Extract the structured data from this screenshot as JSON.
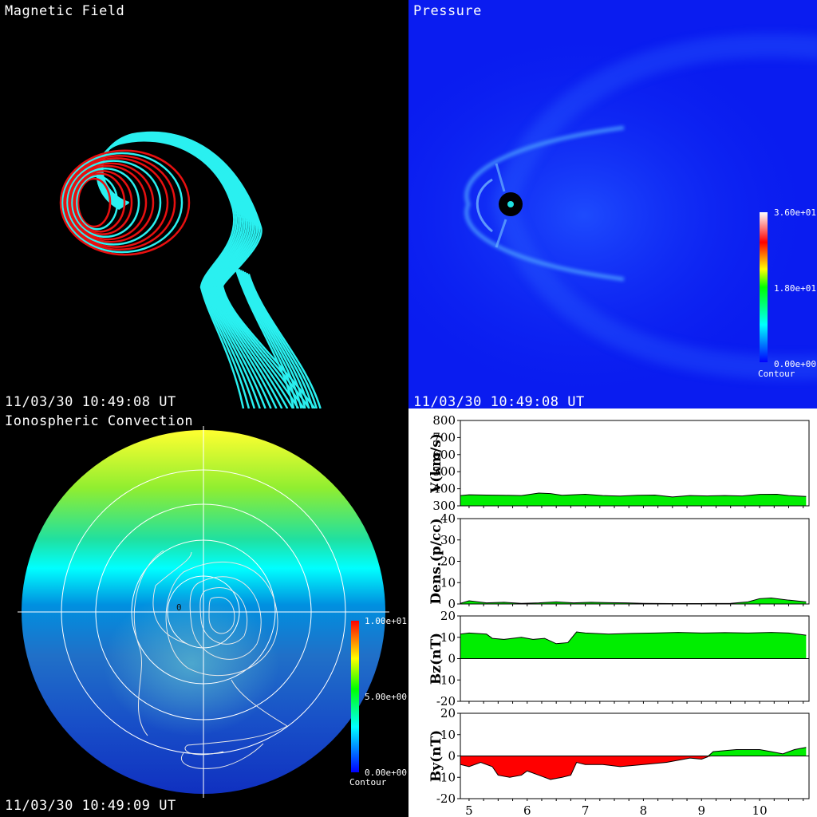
{
  "panels": {
    "magnetic_field": {
      "title": "Magnetic Field",
      "timestamp": "11/03/30 10:49:08 UT",
      "colors": {
        "closed_lines": "#e81010",
        "open_lines": "#2af0f0"
      }
    },
    "pressure": {
      "title": "Pressure",
      "timestamp": "11/03/30 10:49:08 UT",
      "colorbar": {
        "max": "3.60e+01",
        "mid": "1.80e+01",
        "min": "0.00e+00",
        "label": "Contour"
      },
      "colors": {
        "background": "#0a1cf0",
        "bowshock": "#3a8aff"
      }
    },
    "ionospheric_convection": {
      "title": "Ionospheric Convection",
      "timestamp": "11/03/30 10:49:09 UT",
      "colorbar": {
        "max": "1.00e+01",
        "mid": "5.00e+00",
        "min": "0.00e+00",
        "label": "Contour"
      },
      "center_label": "0"
    }
  },
  "solar_wind": {
    "x_ticks": [
      "5",
      "6",
      "7",
      "8",
      "9",
      "10"
    ],
    "plots": [
      {
        "ylabel": "V(km/s)",
        "ticks": [
          "800",
          "700",
          "600",
          "500",
          "400",
          "300"
        ]
      },
      {
        "ylabel": "Dens.(p/cc)",
        "ticks": [
          "40",
          "30",
          "20",
          "10",
          "0"
        ]
      },
      {
        "ylabel": "Bz(nT)",
        "ticks": [
          "20",
          "10",
          "0",
          "-10",
          "-20"
        ]
      },
      {
        "ylabel": "By(nT)",
        "ticks": [
          "20",
          "10",
          "0",
          "-10",
          "-20"
        ]
      }
    ],
    "colors": {
      "positive": "#00ee00",
      "negative": "#ff0000"
    }
  },
  "chart_data": [
    {
      "type": "area",
      "ylabel": "V(km/s)",
      "ylim": [
        300,
        800
      ],
      "x": [
        4.85,
        5.0,
        5.3,
        5.6,
        5.9,
        6.0,
        6.2,
        6.4,
        6.6,
        6.8,
        7.0,
        7.3,
        7.6,
        7.9,
        8.2,
        8.5,
        8.8,
        9.1,
        9.4,
        9.7,
        10.0,
        10.3,
        10.5,
        10.8
      ],
      "values": [
        360,
        365,
        363,
        362,
        360,
        365,
        375,
        372,
        362,
        365,
        368,
        360,
        357,
        362,
        363,
        352,
        360,
        358,
        360,
        358,
        367,
        368,
        360,
        355
      ]
    },
    {
      "type": "area",
      "ylabel": "Dens.(p/cc)",
      "ylim": [
        0,
        40
      ],
      "x": [
        4.85,
        5.0,
        5.3,
        5.6,
        5.9,
        6.2,
        6.5,
        6.8,
        7.1,
        7.4,
        7.7,
        8.0,
        8.5,
        9.0,
        9.5,
        9.8,
        10.0,
        10.2,
        10.5,
        10.8
      ],
      "values": [
        0.3,
        1.5,
        0.5,
        0.8,
        0.3,
        0.5,
        1.0,
        0.5,
        0.8,
        0.6,
        0.5,
        0.3,
        0.2,
        0.2,
        0.3,
        1.0,
        2.5,
        2.8,
        1.8,
        1.0
      ]
    },
    {
      "type": "area",
      "ylabel": "Bz(nT)",
      "ylim": [
        -20,
        20
      ],
      "x": [
        4.85,
        5.0,
        5.3,
        5.4,
        5.6,
        5.9,
        6.1,
        6.3,
        6.5,
        6.7,
        6.85,
        7.0,
        7.4,
        7.8,
        8.2,
        8.6,
        9.0,
        9.4,
        9.8,
        10.2,
        10.5,
        10.8
      ],
      "values": [
        11.5,
        12,
        11.5,
        9.5,
        9,
        10,
        9,
        9.5,
        7,
        7.5,
        12.5,
        12,
        11.5,
        11.8,
        12,
        12.3,
        12,
        12.2,
        12,
        12.3,
        12,
        11
      ]
    },
    {
      "type": "area",
      "ylabel": "By(nT)",
      "ylim": [
        -20,
        20
      ],
      "x": [
        4.85,
        5.0,
        5.2,
        5.4,
        5.5,
        5.7,
        5.9,
        6.0,
        6.2,
        6.4,
        6.6,
        6.75,
        6.85,
        7.0,
        7.3,
        7.6,
        8.0,
        8.4,
        8.8,
        9.0,
        9.1,
        9.2,
        9.6,
        10.0,
        10.2,
        10.4,
        10.6,
        10.8
      ],
      "values": [
        -4,
        -5,
        -3,
        -5,
        -9,
        -10,
        -9,
        -7,
        -9,
        -11,
        -10,
        -9,
        -3,
        -4,
        -4,
        -5,
        -4,
        -3,
        -1,
        -1.5,
        -0.5,
        2,
        3,
        3,
        2,
        1,
        3,
        4
      ]
    }
  ]
}
